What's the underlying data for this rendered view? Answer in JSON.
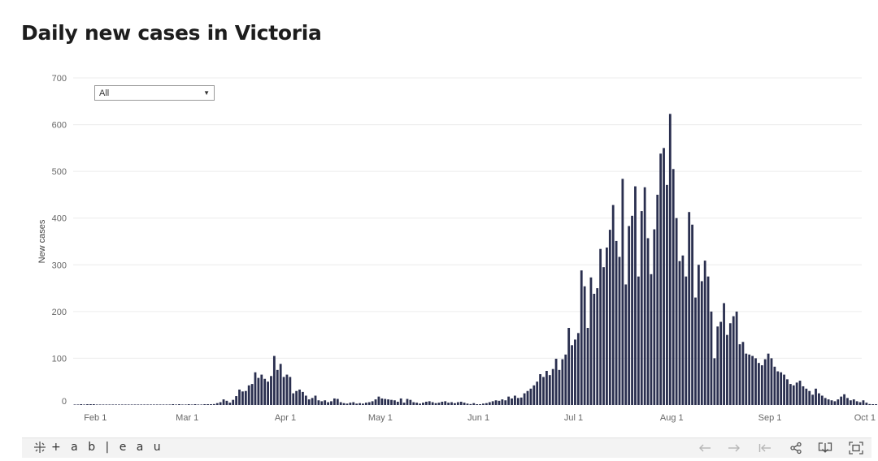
{
  "page": {
    "title": "Daily new cases in Victoria"
  },
  "filter": {
    "selected": "All"
  },
  "toolbar": {
    "brand": "+ a b | e a u",
    "icons": [
      "tableau-logo-icon",
      "undo-icon",
      "redo-icon",
      "revert-icon",
      "share-icon",
      "download-icon",
      "fullscreen-icon"
    ]
  },
  "colors": {
    "bar": "#2a2f4f",
    "grid": "#ececec",
    "toolbar_bg": "#f3f3f3"
  },
  "chart_data": {
    "type": "bar",
    "title": "Daily new cases in Victoria",
    "ylabel": "New cases",
    "xlabel": "",
    "ylim": [
      0,
      700
    ],
    "yticks": [
      0,
      100,
      200,
      300,
      400,
      500,
      600,
      700
    ],
    "grid": true,
    "x_start": "2020-01-25",
    "x_end": "2020-09-30",
    "xticks": [
      {
        "date": "2020-02-01",
        "label": "Feb 1"
      },
      {
        "date": "2020-03-01",
        "label": "Mar 1"
      },
      {
        "date": "2020-04-01",
        "label": "Apr 1"
      },
      {
        "date": "2020-05-01",
        "label": "May 1"
      },
      {
        "date": "2020-06-01",
        "label": "Jun 1"
      },
      {
        "date": "2020-07-01",
        "label": "Jul 1"
      },
      {
        "date": "2020-08-01",
        "label": "Aug 1"
      },
      {
        "date": "2020-09-01",
        "label": "Sep 1"
      },
      {
        "date": "2020-10-01",
        "label": "Oct 1"
      }
    ],
    "start_date": "2020-01-25",
    "values": [
      0,
      0,
      1,
      0,
      1,
      1,
      1,
      0,
      0,
      0,
      0,
      0,
      0,
      0,
      0,
      0,
      0,
      0,
      0,
      0,
      0,
      0,
      0,
      0,
      0,
      0,
      0,
      0,
      0,
      0,
      0,
      1,
      0,
      1,
      0,
      0,
      1,
      0,
      1,
      0,
      0,
      1,
      1,
      1,
      2,
      4,
      6,
      12,
      9,
      5,
      11,
      19,
      33,
      29,
      30,
      42,
      45,
      70,
      58,
      65,
      56,
      50,
      62,
      105,
      75,
      88,
      60,
      65,
      60,
      25,
      30,
      33,
      28,
      20,
      12,
      15,
      20,
      10,
      8,
      10,
      6,
      8,
      14,
      13,
      6,
      4,
      3,
      5,
      6,
      3,
      4,
      3,
      5,
      6,
      8,
      12,
      18,
      14,
      13,
      12,
      11,
      10,
      7,
      14,
      5,
      13,
      11,
      6,
      5,
      3,
      5,
      7,
      8,
      6,
      4,
      5,
      7,
      8,
      5,
      6,
      4,
      6,
      7,
      5,
      3,
      2,
      4,
      1,
      1,
      3,
      4,
      6,
      8,
      10,
      9,
      12,
      10,
      18,
      14,
      20,
      15,
      16,
      25,
      30,
      35,
      42,
      50,
      66,
      60,
      73,
      64,
      77,
      99,
      75,
      98,
      108,
      165,
      128,
      140,
      154,
      288,
      254,
      165,
      273,
      238,
      250,
      334,
      295,
      337,
      375,
      428,
      351,
      317,
      484,
      258,
      383,
      405,
      468,
      275,
      415,
      466,
      357,
      280,
      376,
      450,
      538,
      550,
      471,
      623,
      505,
      400,
      308,
      320,
      275,
      413,
      386,
      230,
      300,
      265,
      309,
      275,
      200,
      100,
      168,
      178,
      218,
      150,
      175,
      190,
      200,
      130,
      135,
      110,
      108,
      105,
      100,
      90,
      85,
      98,
      110,
      100,
      82,
      72,
      70,
      65,
      55,
      45,
      42,
      48,
      52,
      40,
      35,
      30,
      22,
      35,
      25,
      20,
      15,
      12,
      10,
      8,
      12,
      18,
      23,
      15,
      10,
      12,
      8,
      6,
      10,
      5,
      2,
      1,
      1,
      0
    ]
  }
}
